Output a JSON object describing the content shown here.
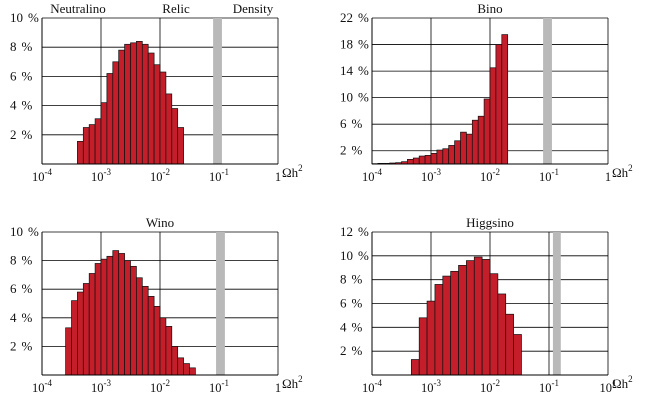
{
  "colors": {
    "bar_fill": "#c41e2a",
    "bar_stroke": "#111111",
    "band_fill": "#b9b9b9",
    "axis": "#000000",
    "grid": "#000000"
  },
  "xaxis_label": "Ωh²",
  "chart_data": [
    {
      "id": "neutralino",
      "type": "bar",
      "title_words": [
        "Neutralino",
        "Relic",
        "Density"
      ],
      "title": "",
      "x_scale": "log10",
      "x_range": [
        0.0001,
        1
      ],
      "x_ticks": [
        "10-4",
        "10-3",
        "10-2",
        "10-1",
        "1"
      ],
      "y_unit": "%",
      "y_range": [
        0,
        10
      ],
      "y_ticks": [
        2,
        4,
        6,
        8,
        10
      ],
      "bin_log_start": -3.4,
      "bin_log_width": 0.1,
      "values": [
        1.55,
        2.5,
        2.7,
        3.1,
        4.2,
        6.2,
        7.0,
        7.8,
        8.2,
        8.3,
        8.4,
        8.2,
        7.6,
        6.8,
        6.3,
        4.8,
        3.8,
        2.5
      ],
      "gray_band_log": [
        -1.1,
        -0.95
      ]
    },
    {
      "id": "bino",
      "type": "bar",
      "title": "Bino",
      "x_scale": "log10",
      "x_range": [
        0.0001,
        1
      ],
      "x_ticks": [
        "10-4",
        "10-3",
        "10-2",
        "10-1",
        "1"
      ],
      "y_unit": "%",
      "y_range": [
        0,
        22
      ],
      "y_ticks": [
        2,
        6,
        10,
        14,
        18,
        22
      ],
      "bin_log_start": -4.0,
      "bin_log_width": 0.1,
      "values": [
        0.05,
        0.1,
        0.1,
        0.15,
        0.2,
        0.35,
        0.7,
        0.9,
        1.2,
        1.3,
        1.6,
        2.1,
        2.3,
        2.8,
        3.5,
        4.8,
        4.5,
        6.6,
        7.2,
        9.8,
        14.5,
        18.0,
        19.5
      ],
      "gray_band_log": [
        -1.1,
        -0.95
      ]
    },
    {
      "id": "wino",
      "type": "bar",
      "title": "Wino",
      "x_scale": "log10",
      "x_range": [
        0.0001,
        1
      ],
      "x_ticks": [
        "10-4",
        "10-3",
        "10-2",
        "10-1",
        "1"
      ],
      "y_unit": "%",
      "y_range": [
        0,
        10
      ],
      "y_ticks": [
        2,
        4,
        6,
        8,
        10
      ],
      "bin_log_start": -3.6,
      "bin_log_width": 0.1,
      "values": [
        3.3,
        5.2,
        5.8,
        6.4,
        7.1,
        7.8,
        8.1,
        8.3,
        8.7,
        8.5,
        8.0,
        7.6,
        6.8,
        6.2,
        5.5,
        4.8,
        4.0,
        3.4,
        2.0,
        1.2,
        0.8,
        0.5
      ],
      "gray_band_log": [
        -1.05,
        -0.9
      ]
    },
    {
      "id": "higgsino",
      "type": "bar",
      "title": "Higgsino",
      "x_scale": "log10",
      "x_range": [
        0.0001,
        100
      ],
      "x_ticks": [
        "10-4",
        "10-3",
        "10-2",
        "10-1",
        "101"
      ],
      "y_unit": "%",
      "y_range": [
        0,
        12
      ],
      "y_ticks": [
        2,
        4,
        6,
        8,
        10,
        12
      ],
      "bin_log_start": -3.0,
      "bin_log_width": 0.2,
      "values": [
        1.3,
        4.8,
        6.2,
        7.6,
        8.3,
        8.7,
        9.2,
        9.6,
        9.9,
        9.7,
        8.5,
        6.8,
        5.1,
        3.4
      ],
      "gray_band_log": [
        0.6,
        0.8
      ]
    }
  ]
}
